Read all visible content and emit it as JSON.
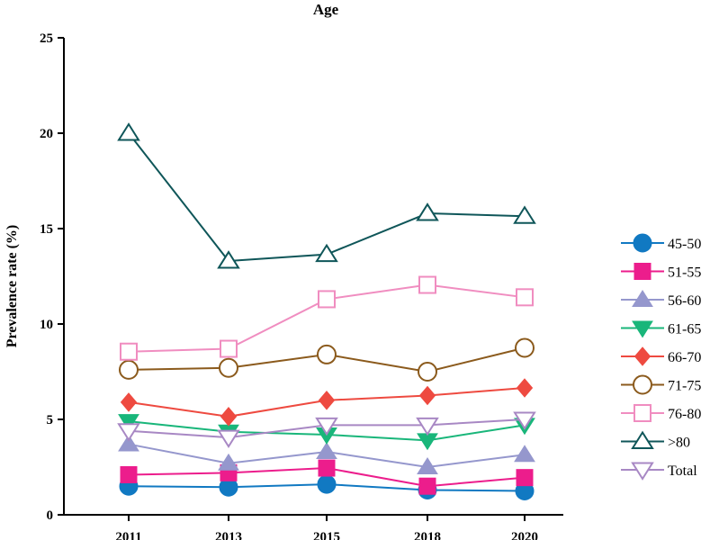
{
  "chart_data": {
    "type": "line",
    "title": "Age",
    "xlabel": "",
    "ylabel": "Prevalence rate (%)",
    "ylim": [
      0,
      25
    ],
    "yticks": [
      "0",
      "5",
      "10",
      "15",
      "20",
      "25"
    ],
    "categories": [
      "2011",
      "2013",
      "2015",
      "2018",
      "2020"
    ],
    "series": [
      {
        "name": "45-50",
        "marker": "circle",
        "color": "#1179c2",
        "filled": true,
        "values": [
          1.5,
          1.45,
          1.6,
          1.3,
          1.25
        ]
      },
      {
        "name": "51-55",
        "marker": "square",
        "color": "#ec1d8c",
        "filled": true,
        "values": [
          2.1,
          2.2,
          2.45,
          1.5,
          1.95
        ]
      },
      {
        "name": "56-60",
        "marker": "triangle-up",
        "color": "#9597cd",
        "filled": true,
        "values": [
          3.7,
          2.7,
          3.3,
          2.5,
          3.15
        ]
      },
      {
        "name": "61-65",
        "marker": "triangle-down",
        "color": "#19b67a",
        "filled": true,
        "values": [
          4.9,
          4.35,
          4.2,
          3.9,
          4.7
        ]
      },
      {
        "name": "66-70",
        "marker": "diamond",
        "color": "#ee4a40",
        "filled": true,
        "values": [
          5.9,
          5.15,
          6.0,
          6.25,
          6.65
        ]
      },
      {
        "name": "71-75",
        "marker": "circle",
        "color": "#8b5a1c",
        "filled": false,
        "values": [
          7.6,
          7.7,
          8.4,
          7.5,
          8.75
        ]
      },
      {
        "name": "76-80",
        "marker": "square",
        "color": "#f08dc0",
        "filled": false,
        "values": [
          8.55,
          8.7,
          11.3,
          12.05,
          11.4
        ]
      },
      {
        "name": ">80",
        "marker": "triangle-up",
        "color": "#0f5659",
        "filled": false,
        "values": [
          20.0,
          13.3,
          13.65,
          15.8,
          15.65
        ]
      },
      {
        "name": "Total",
        "marker": "triangle-down",
        "color": "#a888c4",
        "filled": false,
        "values": [
          4.4,
          4.05,
          4.7,
          4.7,
          5.0
        ]
      }
    ],
    "legend_position": "right",
    "grid": false
  }
}
